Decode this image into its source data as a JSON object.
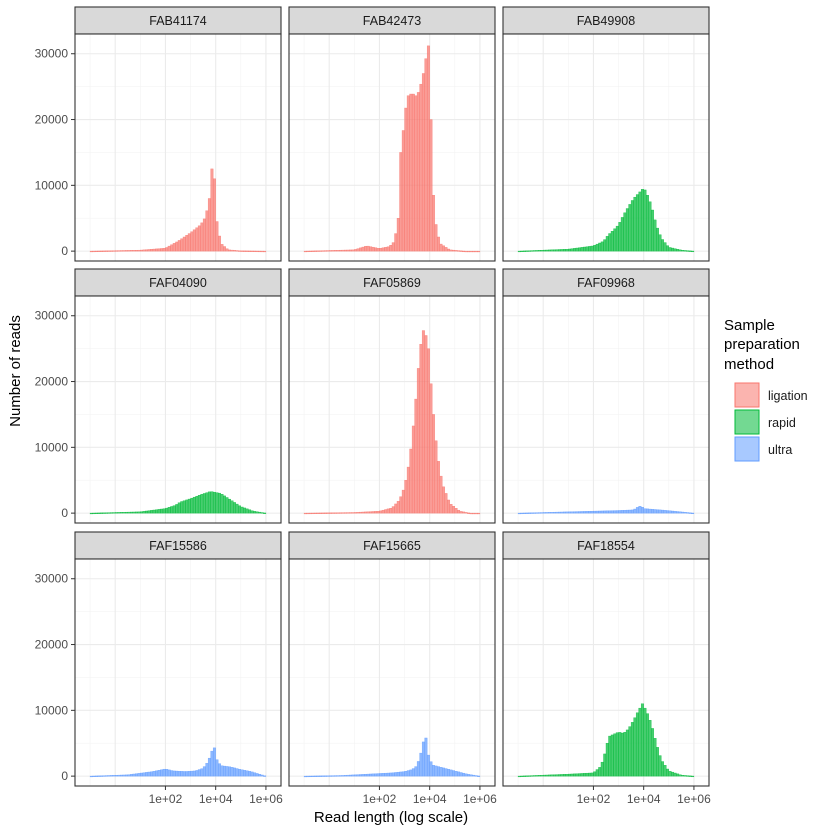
{
  "chart_data": {
    "type": "histogram-facet",
    "xlabel": "Read length (log scale)",
    "ylabel": "Number of reads",
    "x_scale": "log10",
    "xlim_log10": [
      -1.6,
      6.6
    ],
    "ylim": [
      -1500,
      33000
    ],
    "x_ticks": [
      {
        "value": 2,
        "label": "1e+02"
      },
      {
        "value": 4,
        "label": "1e+04"
      },
      {
        "value": 6,
        "label": "1e+06"
      }
    ],
    "y_ticks": [
      {
        "value": 0,
        "label": "0"
      },
      {
        "value": 10000,
        "label": "10000"
      },
      {
        "value": 20000,
        "label": "20000"
      },
      {
        "value": 30000,
        "label": "30000"
      }
    ],
    "legend": {
      "title_lines": [
        "Sample",
        "preparation",
        "method"
      ],
      "entries": [
        {
          "key": "ligation",
          "label": "ligation"
        },
        {
          "key": "rapid",
          "label": "rapid"
        },
        {
          "key": "ultra",
          "label": "ultra"
        }
      ]
    },
    "colors": {
      "ligation": "#F8766D",
      "rapid": "#00BA38",
      "ultra": "#619CFF"
    },
    "bin_width_log10": 0.1,
    "panels": [
      {
        "name": "FAB41174",
        "method": "ligation",
        "profile": [
          [
            -1.0,
            0
          ],
          [
            1.0,
            150
          ],
          [
            2.0,
            450
          ],
          [
            2.5,
            1500
          ],
          [
            3.0,
            2800
          ],
          [
            3.4,
            4000
          ],
          [
            3.6,
            5200
          ],
          [
            3.75,
            8000
          ],
          [
            3.85,
            12500
          ],
          [
            3.9,
            13000
          ],
          [
            3.95,
            11000
          ],
          [
            4.0,
            8000
          ],
          [
            4.05,
            4500
          ],
          [
            4.2,
            1200
          ],
          [
            4.5,
            200
          ],
          [
            5.0,
            50
          ],
          [
            6.0,
            0
          ]
        ]
      },
      {
        "name": "FAB42473",
        "method": "ligation",
        "profile": [
          [
            -1.0,
            0
          ],
          [
            1.0,
            200
          ],
          [
            1.5,
            800
          ],
          [
            2.0,
            400
          ],
          [
            2.4,
            700
          ],
          [
            2.6,
            1500
          ],
          [
            2.75,
            5000
          ],
          [
            2.85,
            15000
          ],
          [
            3.0,
            20000
          ],
          [
            3.1,
            23500
          ],
          [
            3.3,
            24000
          ],
          [
            3.5,
            23500
          ],
          [
            3.7,
            26000
          ],
          [
            3.8,
            28000
          ],
          [
            3.9,
            30500
          ],
          [
            3.95,
            31200
          ],
          [
            4.0,
            28000
          ],
          [
            4.05,
            20000
          ],
          [
            4.1,
            12000
          ],
          [
            4.2,
            5000
          ],
          [
            4.4,
            1200
          ],
          [
            4.8,
            200
          ],
          [
            5.4,
            0
          ]
        ]
      },
      {
        "name": "FAB49908",
        "method": "rapid",
        "profile": [
          [
            -1.0,
            0
          ],
          [
            1.0,
            300
          ],
          [
            2.0,
            800
          ],
          [
            2.4,
            1500
          ],
          [
            2.6,
            2500
          ],
          [
            2.8,
            3200
          ],
          [
            3.0,
            4000
          ],
          [
            3.2,
            5500
          ],
          [
            3.4,
            6800
          ],
          [
            3.6,
            8000
          ],
          [
            3.8,
            8800
          ],
          [
            4.0,
            9600
          ],
          [
            4.1,
            9000
          ],
          [
            4.3,
            7000
          ],
          [
            4.5,
            4000
          ],
          [
            4.7,
            2000
          ],
          [
            5.0,
            600
          ],
          [
            5.5,
            150
          ],
          [
            6.0,
            0
          ]
        ]
      },
      {
        "name": "FAF04090",
        "method": "rapid",
        "profile": [
          [
            -1.0,
            0
          ],
          [
            1.0,
            200
          ],
          [
            2.0,
            700
          ],
          [
            2.4,
            1200
          ],
          [
            2.6,
            1700
          ],
          [
            3.0,
            2200
          ],
          [
            3.4,
            2800
          ],
          [
            3.8,
            3300
          ],
          [
            4.2,
            3000
          ],
          [
            4.6,
            2000
          ],
          [
            5.0,
            1000
          ],
          [
            5.5,
            300
          ],
          [
            6.0,
            0
          ]
        ]
      },
      {
        "name": "FAF05869",
        "method": "ligation",
        "profile": [
          [
            -1.0,
            0
          ],
          [
            1.0,
            100
          ],
          [
            2.0,
            300
          ],
          [
            2.5,
            800
          ],
          [
            2.8,
            2000
          ],
          [
            3.0,
            4000
          ],
          [
            3.2,
            8000
          ],
          [
            3.4,
            15000
          ],
          [
            3.55,
            22000
          ],
          [
            3.7,
            27500
          ],
          [
            3.8,
            28000
          ],
          [
            3.95,
            25000
          ],
          [
            4.1,
            17000
          ],
          [
            4.3,
            9000
          ],
          [
            4.5,
            4500
          ],
          [
            4.8,
            1500
          ],
          [
            5.2,
            300
          ],
          [
            5.6,
            0
          ]
        ]
      },
      {
        "name": "FAF09968",
        "method": "ultra",
        "profile": [
          [
            -1.0,
            0
          ],
          [
            1.0,
            200
          ],
          [
            2.0,
            300
          ],
          [
            3.0,
            400
          ],
          [
            3.6,
            500
          ],
          [
            3.8,
            1000
          ],
          [
            3.9,
            1100
          ],
          [
            4.0,
            700
          ],
          [
            4.3,
            600
          ],
          [
            4.8,
            450
          ],
          [
            5.2,
            300
          ],
          [
            6.0,
            0
          ]
        ]
      },
      {
        "name": "FAF15586",
        "method": "ultra",
        "profile": [
          [
            -1.0,
            0
          ],
          [
            0.5,
            200
          ],
          [
            1.5,
            700
          ],
          [
            2.0,
            1100
          ],
          [
            2.3,
            800
          ],
          [
            2.8,
            700
          ],
          [
            3.2,
            800
          ],
          [
            3.5,
            1200
          ],
          [
            3.7,
            2200
          ],
          [
            3.85,
            3800
          ],
          [
            3.95,
            4300
          ],
          [
            4.05,
            2500
          ],
          [
            4.2,
            1600
          ],
          [
            4.6,
            1400
          ],
          [
            5.0,
            1000
          ],
          [
            5.4,
            700
          ],
          [
            6.0,
            0
          ]
        ]
      },
      {
        "name": "FAF15665",
        "method": "ultra",
        "profile": [
          [
            -1.0,
            0
          ],
          [
            0.5,
            100
          ],
          [
            1.5,
            300
          ],
          [
            2.5,
            500
          ],
          [
            3.0,
            700
          ],
          [
            3.3,
            1000
          ],
          [
            3.5,
            1600
          ],
          [
            3.65,
            3500
          ],
          [
            3.75,
            5200
          ],
          [
            3.85,
            5800
          ],
          [
            3.95,
            3200
          ],
          [
            4.1,
            1700
          ],
          [
            4.5,
            1300
          ],
          [
            5.0,
            800
          ],
          [
            5.5,
            300
          ],
          [
            6.0,
            0
          ]
        ]
      },
      {
        "name": "FAF18554",
        "method": "rapid",
        "profile": [
          [
            -1.0,
            0
          ],
          [
            1.0,
            300
          ],
          [
            2.0,
            500
          ],
          [
            2.3,
            1500
          ],
          [
            2.5,
            4000
          ],
          [
            2.6,
            6000
          ],
          [
            3.0,
            6700
          ],
          [
            3.2,
            6500
          ],
          [
            3.4,
            7200
          ],
          [
            3.6,
            8500
          ],
          [
            3.8,
            10000
          ],
          [
            3.95,
            11000
          ],
          [
            4.1,
            10000
          ],
          [
            4.3,
            8000
          ],
          [
            4.5,
            5000
          ],
          [
            4.7,
            2500
          ],
          [
            5.0,
            800
          ],
          [
            5.5,
            150
          ],
          [
            6.0,
            0
          ]
        ]
      }
    ]
  }
}
